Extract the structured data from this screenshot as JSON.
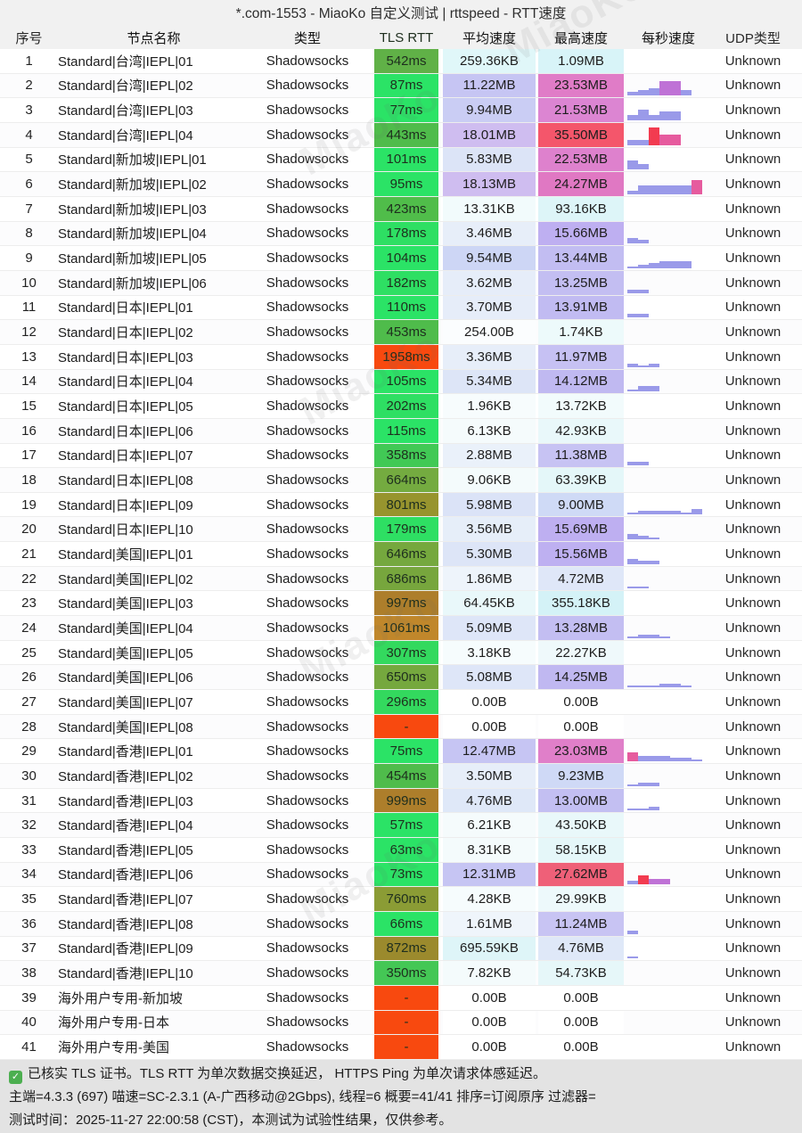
{
  "title": "*.com-1553 - MiaoKo 自定义测试 | rttspeed - RTT速度",
  "columns": [
    "序号",
    "节点名称",
    "类型",
    "TLS RTT",
    "平均速度",
    "最高速度",
    "每秒速度",
    "UDP类型"
  ],
  "watermark": "MiaoKo",
  "bar_colors": {
    "p": "#9a9ae9",
    "m": "#bf72d6",
    "k": "#e65b9e",
    "r": "#f23b50"
  },
  "rows": [
    {
      "idx": "1",
      "name": "Standard|台湾|IEPL|01",
      "type": "Shadowsocks",
      "rtt": "542ms",
      "rtt_bg": "#60b147",
      "avg": "259.36KB",
      "avg_bg": "#e0f7f9",
      "max": "1.09MB",
      "max_bg": "#d8f4f8",
      "bars": [],
      "udp": "Unknown"
    },
    {
      "idx": "2",
      "name": "Standard|台湾|IEPL|02",
      "type": "Shadowsocks",
      "rtt": "87ms",
      "rtt_bg": "#2be366",
      "avg": "11.22MB",
      "avg_bg": "#c6c5f3",
      "max": "23.53MB",
      "max_bg": "#e07cc7",
      "bars": [
        [
          2,
          "p"
        ],
        [
          3,
          "p"
        ],
        [
          4,
          "p"
        ],
        [
          8,
          "m"
        ],
        [
          8,
          "m"
        ],
        [
          3,
          "p"
        ]
      ],
      "udp": "Unknown"
    },
    {
      "idx": "3",
      "name": "Standard|台湾|IEPL|03",
      "type": "Shadowsocks",
      "rtt": "77ms",
      "rtt_bg": "#2be366",
      "avg": "9.94MB",
      "avg_bg": "#cacdf4",
      "max": "21.53MB",
      "max_bg": "#dc85d2",
      "bars": [
        [
          3,
          "p"
        ],
        [
          6,
          "p"
        ],
        [
          3,
          "p"
        ],
        [
          5,
          "p"
        ],
        [
          5,
          "p"
        ]
      ],
      "udp": "Unknown"
    },
    {
      "idx": "4",
      "name": "Standard|台湾|IEPL|04",
      "type": "Shadowsocks",
      "rtt": "443ms",
      "rtt_bg": "#4fbc4b",
      "avg": "18.01MB",
      "avg_bg": "#cfbdf0",
      "max": "35.50MB",
      "max_bg": "#f4566b",
      "bars": [
        [
          3,
          "p"
        ],
        [
          3,
          "p"
        ],
        [
          10,
          "r"
        ],
        [
          6,
          "k"
        ],
        [
          6,
          "k"
        ]
      ],
      "udp": "Unknown"
    },
    {
      "idx": "5",
      "name": "Standard|新加坡|IEPL|01",
      "type": "Shadowsocks",
      "rtt": "101ms",
      "rtt_bg": "#2be366",
      "avg": "5.83MB",
      "avg_bg": "#dce4f7",
      "max": "22.53MB",
      "max_bg": "#de81cd",
      "bars": [
        [
          5,
          "p"
        ],
        [
          3,
          "p"
        ]
      ],
      "udp": "Unknown"
    },
    {
      "idx": "6",
      "name": "Standard|新加坡|IEPL|02",
      "type": "Shadowsocks",
      "rtt": "95ms",
      "rtt_bg": "#2be366",
      "avg": "18.13MB",
      "avg_bg": "#cfbdf0",
      "max": "24.27MB",
      "max_bg": "#e078c3",
      "bars": [
        [
          2,
          "p"
        ],
        [
          5,
          "p"
        ],
        [
          5,
          "p"
        ],
        [
          5,
          "p"
        ],
        [
          5,
          "p"
        ],
        [
          5,
          "p"
        ],
        [
          8,
          "k"
        ]
      ],
      "udp": "Unknown"
    },
    {
      "idx": "7",
      "name": "Standard|新加坡|IEPL|03",
      "type": "Shadowsocks",
      "rtt": "423ms",
      "rtt_bg": "#50bd4a",
      "avg": "13.31KB",
      "avg_bg": "#f2fbfc",
      "max": "93.16KB",
      "max_bg": "#ddf5f8",
      "bars": [],
      "udp": "Unknown"
    },
    {
      "idx": "8",
      "name": "Standard|新加坡|IEPL|04",
      "type": "Shadowsocks",
      "rtt": "178ms",
      "rtt_bg": "#2edf63",
      "avg": "3.46MB",
      "avg_bg": "#e7eef9",
      "max": "15.66MB",
      "max_bg": "#beaff1",
      "bars": [
        [
          3,
          "p"
        ],
        [
          2,
          "p"
        ]
      ],
      "udp": "Unknown"
    },
    {
      "idx": "9",
      "name": "Standard|新加坡|IEPL|05",
      "type": "Shadowsocks",
      "rtt": "104ms",
      "rtt_bg": "#2be366",
      "avg": "9.54MB",
      "avg_bg": "#cdd6f5",
      "max": "13.44MB",
      "max_bg": "#c2bdf2",
      "bars": [
        [
          1,
          "p"
        ],
        [
          2,
          "p"
        ],
        [
          3,
          "p"
        ],
        [
          4,
          "p"
        ],
        [
          4,
          "p"
        ],
        [
          4,
          "p"
        ]
      ],
      "udp": "Unknown"
    },
    {
      "idx": "10",
      "name": "Standard|新加坡|IEPL|06",
      "type": "Shadowsocks",
      "rtt": "182ms",
      "rtt_bg": "#2edf63",
      "avg": "3.62MB",
      "avg_bg": "#e6edf9",
      "max": "13.25MB",
      "max_bg": "#c3bef2",
      "bars": [
        [
          2,
          "p"
        ],
        [
          2,
          "p"
        ]
      ],
      "udp": "Unknown"
    },
    {
      "idx": "11",
      "name": "Standard|日本|IEPL|01",
      "type": "Shadowsocks",
      "rtt": "110ms",
      "rtt_bg": "#2be366",
      "avg": "3.70MB",
      "avg_bg": "#e6edf9",
      "max": "13.91MB",
      "max_bg": "#c1bbf2",
      "bars": [
        [
          2,
          "p"
        ],
        [
          2,
          "p"
        ]
      ],
      "udp": "Unknown"
    },
    {
      "idx": "12",
      "name": "Standard|日本|IEPL|02",
      "type": "Shadowsocks",
      "rtt": "453ms",
      "rtt_bg": "#4fbc4b",
      "avg": "254.00B",
      "avg_bg": "#fbfdfe",
      "max": "1.74KB",
      "max_bg": "#edfafb",
      "bars": [],
      "udp": "Unknown"
    },
    {
      "idx": "13",
      "name": "Standard|日本|IEPL|03",
      "type": "Shadowsocks",
      "rtt": "1958ms",
      "rtt_bg": "#f8490f",
      "avg": "3.36MB",
      "avg_bg": "#e7eef9",
      "max": "11.97MB",
      "max_bg": "#c6c1f3",
      "bars": [
        [
          2,
          "p"
        ],
        [
          1,
          "p"
        ],
        [
          2,
          "p"
        ]
      ],
      "udp": "Unknown"
    },
    {
      "idx": "14",
      "name": "Standard|日本|IEPL|04",
      "type": "Shadowsocks",
      "rtt": "105ms",
      "rtt_bg": "#2be366",
      "avg": "5.34MB",
      "avg_bg": "#dde5f7",
      "max": "14.12MB",
      "max_bg": "#c0b9f1",
      "bars": [
        [
          1,
          "p"
        ],
        [
          3,
          "p"
        ],
        [
          3,
          "p"
        ]
      ],
      "udp": "Unknown"
    },
    {
      "idx": "15",
      "name": "Standard|日本|IEPL|05",
      "type": "Shadowsocks",
      "rtt": "202ms",
      "rtt_bg": "#2edf63",
      "avg": "1.96KB",
      "avg_bg": "#f7fcfd",
      "max": "13.72KB",
      "max_bg": "#f2fbfc",
      "bars": [],
      "udp": "Unknown"
    },
    {
      "idx": "16",
      "name": "Standard|日本|IEPL|06",
      "type": "Shadowsocks",
      "rtt": "115ms",
      "rtt_bg": "#2be366",
      "avg": "6.13KB",
      "avg_bg": "#f5fbfc",
      "max": "42.93KB",
      "max_bg": "#e9f8fa",
      "bars": [],
      "udp": "Unknown"
    },
    {
      "idx": "17",
      "name": "Standard|日本|IEPL|07",
      "type": "Shadowsocks",
      "rtt": "358ms",
      "rtt_bg": "#41c955",
      "avg": "2.88MB",
      "avg_bg": "#eaf1fa",
      "max": "11.38MB",
      "max_bg": "#c7c3f3",
      "bars": [
        [
          2,
          "p"
        ],
        [
          2,
          "p"
        ]
      ],
      "udp": "Unknown"
    },
    {
      "idx": "18",
      "name": "Standard|日本|IEPL|08",
      "type": "Shadowsocks",
      "rtt": "664ms",
      "rtt_bg": "#74ab40",
      "avg": "9.06KB",
      "avg_bg": "#f4fbfc",
      "max": "63.39KB",
      "max_bg": "#e4f7f9",
      "bars": [],
      "udp": "Unknown"
    },
    {
      "idx": "19",
      "name": "Standard|日本|IEPL|09",
      "type": "Shadowsocks",
      "rtt": "801ms",
      "rtt_bg": "#97942e",
      "avg": "5.98MB",
      "avg_bg": "#dbe3f7",
      "max": "9.00MB",
      "max_bg": "#cfdaf6",
      "bars": [
        [
          1,
          "p"
        ],
        [
          2,
          "p"
        ],
        [
          2,
          "p"
        ],
        [
          2,
          "p"
        ],
        [
          2,
          "p"
        ],
        [
          1,
          "p"
        ],
        [
          3,
          "p"
        ]
      ],
      "udp": "Unknown"
    },
    {
      "idx": "20",
      "name": "Standard|日本|IEPL|10",
      "type": "Shadowsocks",
      "rtt": "179ms",
      "rtt_bg": "#2edf63",
      "avg": "3.56MB",
      "avg_bg": "#e6eef9",
      "max": "15.69MB",
      "max_bg": "#beaff1",
      "bars": [
        [
          3,
          "p"
        ],
        [
          2,
          "p"
        ],
        [
          1,
          "p"
        ]
      ],
      "udp": "Unknown"
    },
    {
      "idx": "21",
      "name": "Standard|美国|IEPL|01",
      "type": "Shadowsocks",
      "rtt": "646ms",
      "rtt_bg": "#75a83e",
      "avg": "5.30MB",
      "avg_bg": "#dde5f7",
      "max": "15.56MB",
      "max_bg": "#beb0f1",
      "bars": [
        [
          3,
          "p"
        ],
        [
          2,
          "p"
        ],
        [
          2,
          "p"
        ]
      ],
      "udp": "Unknown"
    },
    {
      "idx": "22",
      "name": "Standard|美国|IEPL|02",
      "type": "Shadowsocks",
      "rtt": "686ms",
      "rtt_bg": "#77a63d",
      "avg": "1.86MB",
      "avg_bg": "#eef4fb",
      "max": "4.72MB",
      "max_bg": "#dfe7f8",
      "bars": [
        [
          1,
          "p"
        ],
        [
          1,
          "p"
        ]
      ],
      "udp": "Unknown"
    },
    {
      "idx": "23",
      "name": "Standard|美国|IEPL|03",
      "type": "Shadowsocks",
      "rtt": "997ms",
      "rtt_bg": "#ad7e2b",
      "avg": "64.45KB",
      "avg_bg": "#e9f8fa",
      "max": "355.18KB",
      "max_bg": "#d4f2f7",
      "bars": [],
      "udp": "Unknown"
    },
    {
      "idx": "24",
      "name": "Standard|美国|IEPL|04",
      "type": "Shadowsocks",
      "rtt": "1061ms",
      "rtt_bg": "#c0872b",
      "avg": "5.09MB",
      "avg_bg": "#dee6f8",
      "max": "13.28MB",
      "max_bg": "#c3bef2",
      "bars": [
        [
          1,
          "p"
        ],
        [
          2,
          "p"
        ],
        [
          2,
          "p"
        ],
        [
          1,
          "p"
        ]
      ],
      "udp": "Unknown"
    },
    {
      "idx": "25",
      "name": "Standard|美国|IEPL|05",
      "type": "Shadowsocks",
      "rtt": "307ms",
      "rtt_bg": "#33d95e",
      "avg": "3.18KB",
      "avg_bg": "#f6fcfd",
      "max": "22.27KB",
      "max_bg": "#eff9fb",
      "bars": [],
      "udp": "Unknown"
    },
    {
      "idx": "26",
      "name": "Standard|美国|IEPL|06",
      "type": "Shadowsocks",
      "rtt": "650ms",
      "rtt_bg": "#75a83e",
      "avg": "5.08MB",
      "avg_bg": "#dee6f8",
      "max": "14.25MB",
      "max_bg": "#c0b8f1",
      "bars": [
        [
          1,
          "p"
        ],
        [
          1,
          "p"
        ],
        [
          1,
          "p"
        ],
        [
          2,
          "p"
        ],
        [
          2,
          "p"
        ],
        [
          1,
          "p"
        ]
      ],
      "udp": "Unknown"
    },
    {
      "idx": "27",
      "name": "Standard|美国|IEPL|07",
      "type": "Shadowsocks",
      "rtt": "296ms",
      "rtt_bg": "#33d95e",
      "avg": "0.00B",
      "avg_bg": "#ffffff",
      "max": "0.00B",
      "max_bg": "#ffffff",
      "bars": [],
      "udp": "Unknown"
    },
    {
      "idx": "28",
      "name": "Standard|美国|IEPL|08",
      "type": "Shadowsocks",
      "rtt": "-",
      "rtt_bg": "#f8490f",
      "avg": "0.00B",
      "avg_bg": "#ffffff",
      "max": "0.00B",
      "max_bg": "#ffffff",
      "bars": [],
      "udp": "Unknown"
    },
    {
      "idx": "29",
      "name": "Standard|香港|IEPL|01",
      "type": "Shadowsocks",
      "rtt": "75ms",
      "rtt_bg": "#2be366",
      "avg": "12.47MB",
      "avg_bg": "#c6c5f3",
      "max": "23.03MB",
      "max_bg": "#e07fc9",
      "bars": [
        [
          5,
          "k"
        ],
        [
          3,
          "p"
        ],
        [
          3,
          "p"
        ],
        [
          3,
          "p"
        ],
        [
          2,
          "p"
        ],
        [
          2,
          "p"
        ],
        [
          1,
          "p"
        ]
      ],
      "udp": "Unknown"
    },
    {
      "idx": "30",
      "name": "Standard|香港|IEPL|02",
      "type": "Shadowsocks",
      "rtt": "454ms",
      "rtt_bg": "#4fbc4b",
      "avg": "3.50MB",
      "avg_bg": "#e7eef9",
      "max": "9.23MB",
      "max_bg": "#cfd9f6",
      "bars": [
        [
          1,
          "p"
        ],
        [
          2,
          "p"
        ],
        [
          2,
          "p"
        ]
      ],
      "udp": "Unknown"
    },
    {
      "idx": "31",
      "name": "Standard|香港|IEPL|03",
      "type": "Shadowsocks",
      "rtt": "999ms",
      "rtt_bg": "#ad7e2b",
      "avg": "4.76MB",
      "avg_bg": "#dfe8f8",
      "max": "13.00MB",
      "max_bg": "#c3bff2",
      "bars": [
        [
          1,
          "p"
        ],
        [
          1,
          "p"
        ],
        [
          2,
          "p"
        ]
      ],
      "udp": "Unknown"
    },
    {
      "idx": "32",
      "name": "Standard|香港|IEPL|04",
      "type": "Shadowsocks",
      "rtt": "57ms",
      "rtt_bg": "#2be366",
      "avg": "6.21KB",
      "avg_bg": "#f5fbfc",
      "max": "43.50KB",
      "max_bg": "#e9f8fa",
      "bars": [],
      "udp": "Unknown"
    },
    {
      "idx": "33",
      "name": "Standard|香港|IEPL|05",
      "type": "Shadowsocks",
      "rtt": "63ms",
      "rtt_bg": "#2be366",
      "avg": "8.31KB",
      "avg_bg": "#f4fbfc",
      "max": "58.15KB",
      "max_bg": "#e5f7f9",
      "bars": [],
      "udp": "Unknown"
    },
    {
      "idx": "34",
      "name": "Standard|香港|IEPL|06",
      "type": "Shadowsocks",
      "rtt": "73ms",
      "rtt_bg": "#2be366",
      "avg": "12.31MB",
      "avg_bg": "#c6c5f3",
      "max": "27.62MB",
      "max_bg": "#ef6078",
      "bars": [
        [
          2,
          "p"
        ],
        [
          5,
          "r"
        ],
        [
          3,
          "m"
        ],
        [
          3,
          "m"
        ]
      ],
      "udp": "Unknown"
    },
    {
      "idx": "35",
      "name": "Standard|香港|IEPL|07",
      "type": "Shadowsocks",
      "rtt": "760ms",
      "rtt_bg": "#8b9c35",
      "avg": "4.28KB",
      "avg_bg": "#f6fcfd",
      "max": "29.99KB",
      "max_bg": "#edf9fb",
      "bars": [],
      "udp": "Unknown"
    },
    {
      "idx": "36",
      "name": "Standard|香港|IEPL|08",
      "type": "Shadowsocks",
      "rtt": "66ms",
      "rtt_bg": "#2be366",
      "avg": "1.61MB",
      "avg_bg": "#eff5fb",
      "max": "11.24MB",
      "max_bg": "#c8c4f3",
      "bars": [
        [
          2,
          "p"
        ]
      ],
      "udp": "Unknown"
    },
    {
      "idx": "37",
      "name": "Standard|香港|IEPL|09",
      "type": "Shadowsocks",
      "rtt": "872ms",
      "rtt_bg": "#9b8a2d",
      "avg": "695.59KB",
      "avg_bg": "#def5f8",
      "max": "4.76MB",
      "max_bg": "#dfe8f8",
      "bars": [
        [
          1,
          "p"
        ]
      ],
      "udp": "Unknown"
    },
    {
      "idx": "38",
      "name": "Standard|香港|IEPL|10",
      "type": "Shadowsocks",
      "rtt": "350ms",
      "rtt_bg": "#44c755",
      "avg": "7.82KB",
      "avg_bg": "#f4fbfc",
      "max": "54.73KB",
      "max_bg": "#e6f7f9",
      "bars": [],
      "udp": "Unknown"
    },
    {
      "idx": "39",
      "name": "海外用户专用-新加坡",
      "type": "Shadowsocks",
      "rtt": "-",
      "rtt_bg": "#f8490f",
      "avg": "0.00B",
      "avg_bg": "#ffffff",
      "max": "0.00B",
      "max_bg": "#ffffff",
      "bars": [],
      "udp": "Unknown"
    },
    {
      "idx": "40",
      "name": "海外用户专用-日本",
      "type": "Shadowsocks",
      "rtt": "-",
      "rtt_bg": "#f8490f",
      "avg": "0.00B",
      "avg_bg": "#ffffff",
      "max": "0.00B",
      "max_bg": "#ffffff",
      "bars": [],
      "udp": "Unknown"
    },
    {
      "idx": "41",
      "name": "海外用户专用-美国",
      "type": "Shadowsocks",
      "rtt": "-",
      "rtt_bg": "#f8490f",
      "avg": "0.00B",
      "avg_bg": "#ffffff",
      "max": "0.00B",
      "max_bg": "#ffffff",
      "bars": [],
      "udp": "Unknown"
    }
  ],
  "footer": {
    "check": "✓",
    "line1": "已核实 TLS 证书。TLS RTT 为单次数据交换延迟， HTTPS Ping 为单次请求体感延迟。",
    "line2": "主端=4.3.3 (697) 喵速=SC-2.3.1 (A-广西移动@2Gbps), 线程=6 概要=41/41 排序=订阅原序 过滤器=",
    "line3": "测试时间：2025-11-27 22:00:58 (CST)，本测试为试验性结果，仅供参考。"
  }
}
